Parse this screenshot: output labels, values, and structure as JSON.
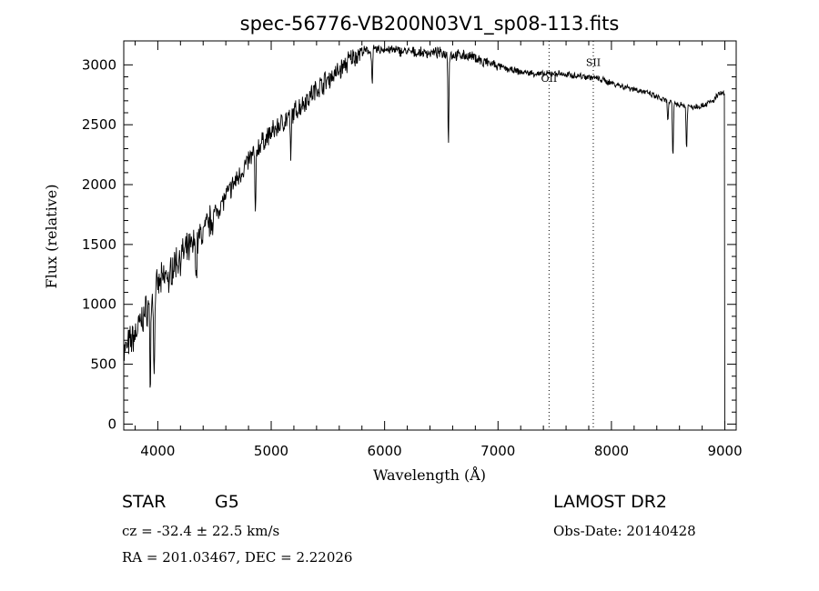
{
  "chart_data": {
    "type": "line",
    "title": "spec-56776-VB200N03V1_sp08-113.fits",
    "xlabel": "Wavelength (Å)",
    "ylabel": "Flux (relative)",
    "xlim": [
      3700,
      9100
    ],
    "ylim": [
      -50,
      3200
    ],
    "xticks": [
      4000,
      5000,
      6000,
      7000,
      8000,
      9000
    ],
    "yticks": [
      0,
      500,
      1000,
      1500,
      2000,
      2500,
      3000
    ],
    "grid": false,
    "series": [
      {
        "continuum": [
          [
            3700,
            600
          ],
          [
            3800,
            750
          ],
          [
            3900,
            950
          ],
          [
            4000,
            1150
          ],
          [
            4100,
            1280
          ],
          [
            4200,
            1400
          ],
          [
            4300,
            1480
          ],
          [
            4400,
            1600
          ],
          [
            4500,
            1750
          ],
          [
            4600,
            1900
          ],
          [
            4700,
            2050
          ],
          [
            4800,
            2200
          ],
          [
            4900,
            2330
          ],
          [
            5000,
            2430
          ],
          [
            5100,
            2520
          ],
          [
            5200,
            2600
          ],
          [
            5300,
            2700
          ],
          [
            5400,
            2800
          ],
          [
            5500,
            2880
          ],
          [
            5600,
            2950
          ],
          [
            5700,
            3050
          ],
          [
            5800,
            3110
          ],
          [
            5900,
            3120
          ],
          [
            6000,
            3130
          ],
          [
            6100,
            3120
          ],
          [
            6200,
            3110
          ],
          [
            6300,
            3100
          ],
          [
            6400,
            3100
          ],
          [
            6500,
            3100
          ],
          [
            6600,
            3080
          ],
          [
            6700,
            3080
          ],
          [
            6800,
            3060
          ],
          [
            6900,
            3020
          ],
          [
            7000,
            2990
          ],
          [
            7100,
            2960
          ],
          [
            7200,
            2940
          ],
          [
            7300,
            2930
          ],
          [
            7400,
            2920
          ],
          [
            7500,
            2930
          ],
          [
            7600,
            2920
          ],
          [
            7700,
            2910
          ],
          [
            7800,
            2900
          ],
          [
            7900,
            2880
          ],
          [
            8000,
            2850
          ],
          [
            8100,
            2820
          ],
          [
            8200,
            2800
          ],
          [
            8300,
            2770
          ],
          [
            8400,
            2730
          ],
          [
            8500,
            2690
          ],
          [
            8600,
            2670
          ],
          [
            8700,
            2650
          ],
          [
            8800,
            2660
          ],
          [
            8900,
            2700
          ],
          [
            8950,
            2760
          ]
        ],
        "absorption_lines": [
          [
            3934,
            320
          ],
          [
            3968,
            350
          ],
          [
            4101,
            1050
          ],
          [
            4340,
            1200
          ],
          [
            4861,
            1700
          ],
          [
            5172,
            2180
          ],
          [
            5890,
            2850
          ],
          [
            6563,
            2360
          ],
          [
            6867,
            2980
          ],
          [
            7600,
            2890
          ],
          [
            8498,
            2530
          ],
          [
            8542,
            2210
          ],
          [
            8662,
            2290
          ]
        ],
        "edge_drop": [
          9000,
          0
        ]
      }
    ],
    "annotations": [
      {
        "label": "OII",
        "x": 7450
      },
      {
        "label": "SII",
        "x": 7840
      }
    ]
  },
  "info": {
    "object_class": "STAR",
    "subclass": "G5",
    "survey": "LAMOST DR2",
    "redshift": "cz = -32.4 ± 22.5 km/s",
    "obs_date": "Obs-Date: 20140428",
    "coords": "RA = 201.03467, DEC =   2.22026"
  }
}
